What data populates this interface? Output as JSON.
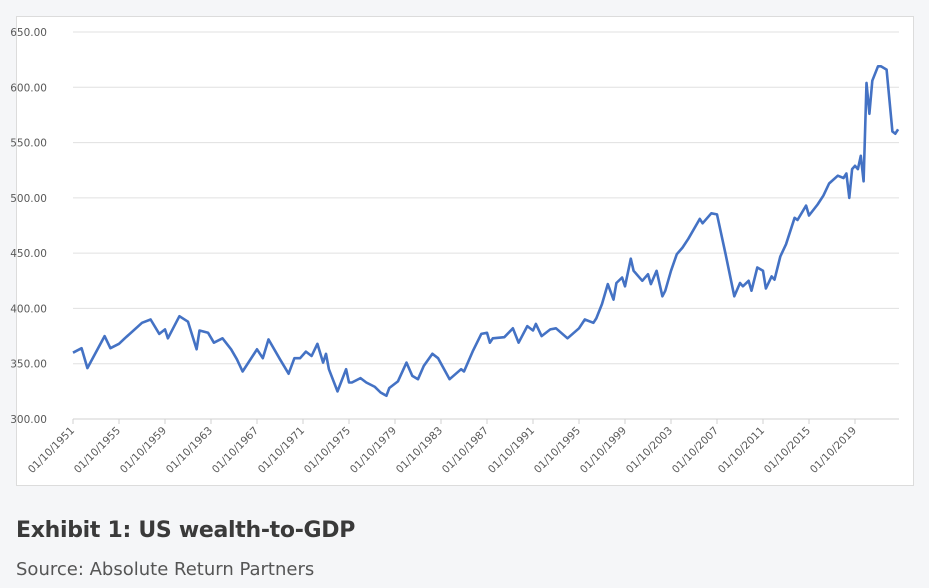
{
  "caption": {
    "title": "Exhibit 1: US wealth-to-GDP",
    "source": "Source: Absolute Return Partners"
  },
  "chart_data": {
    "type": "line",
    "title": "",
    "xlabel": "",
    "ylabel": "",
    "ylim": [
      300,
      650
    ],
    "yticks": [
      "300.00",
      "350.00",
      "400.00",
      "450.00",
      "500.00",
      "550.00",
      "600.00",
      "650.00"
    ],
    "xticks": [
      "01/10/1951",
      "01/10/1955",
      "01/10/1959",
      "01/10/1963",
      "01/10/1967",
      "01/10/1971",
      "01/10/1975",
      "01/10/1979",
      "01/10/1983",
      "01/10/1987",
      "01/10/1991",
      "01/10/1995",
      "01/10/1999",
      "01/10/2003",
      "01/10/2007",
      "01/10/2011",
      "01/10/2015",
      "01/10/2019"
    ],
    "grid": true,
    "legend": "none",
    "line_color": "#4472c4",
    "series": [
      {
        "x": [
          "01/10/1951",
          "01/07/1952",
          "01/01/1953",
          "01/07/1954",
          "01/01/1955",
          "01/10/1955",
          "01/04/1956",
          "01/10/1957",
          "01/07/1958",
          "01/04/1959",
          "01/10/1959",
          "01/01/1960",
          "01/01/1961",
          "01/10/1961",
          "01/07/1962",
          "01/10/1962",
          "01/07/1963",
          "01/01/1964",
          "01/10/1964",
          "01/07/1965",
          "01/01/1966",
          "01/07/1966",
          "01/10/1967",
          "01/04/1968",
          "01/10/1968",
          "01/10/1969",
          "01/07/1970",
          "01/01/1971",
          "01/07/1971",
          "01/01/1972",
          "01/07/1972",
          "01/01/1973",
          "01/07/1973",
          "01/10/1973",
          "01/01/1974",
          "01/10/1974",
          "01/07/1975",
          "01/10/1975",
          "01/01/1976",
          "01/10/1976",
          "01/04/1977",
          "01/01/1978",
          "01/07/1978",
          "01/01/1979",
          "01/04/1979",
          "01/01/1980",
          "01/10/1980",
          "01/04/1981",
          "01/10/1981",
          "01/04/1982",
          "01/01/1983",
          "01/07/1983",
          "01/07/1984",
          "01/07/1985",
          "01/10/1985",
          "01/07/1986",
          "01/04/1987",
          "01/10/1987",
          "01/01/1988",
          "01/04/1988",
          "01/04/1989",
          "01/01/1990",
          "01/07/1990",
          "01/04/1991",
          "01/10/1991",
          "01/01/1992",
          "01/07/1992",
          "01/04/1993",
          "01/10/1993",
          "01/10/1994",
          "01/10/1995",
          "01/04/1996",
          "01/01/1997",
          "01/04/1997",
          "01/10/1997",
          "01/04/1998",
          "01/10/1998",
          "01/01/1999",
          "01/07/1999",
          "01/10/1999",
          "01/04/2000",
          "01/07/2000",
          "01/04/2001",
          "01/10/2001",
          "01/01/2002",
          "01/07/2002",
          "01/01/2003",
          "01/04/2003",
          "01/10/2003",
          "01/04/2004",
          "01/10/2004",
          "01/04/2005",
          "01/04/2006",
          "01/07/2006",
          "01/04/2007",
          "01/10/2007",
          "01/07/2008",
          "01/04/2009",
          "01/10/2009",
          "01/01/2010",
          "01/07/2010",
          "01/10/2010",
          "01/04/2011",
          "01/10/2011",
          "01/01/2012",
          "01/07/2012",
          "01/10/2012",
          "01/04/2013",
          "01/10/2013",
          "01/07/2014",
          "01/10/2014",
          "01/07/2015",
          "01/10/2015",
          "01/07/2016",
          "01/01/2017",
          "01/07/2017",
          "01/04/2018",
          "01/10/2018",
          "01/01/2019",
          "01/04/2019",
          "01/07/2019",
          "01/10/2019",
          "01/01/2020",
          "01/04/2020",
          "01/07/2020",
          "01/10/2020",
          "01/01/2021",
          "01/04/2021",
          "01/10/2021",
          "01/01/2022",
          "01/07/2022",
          "01/01/2023",
          "01/04/2023",
          "01/07/2023"
        ],
        "y": [
          360,
          364,
          346,
          375,
          364,
          368,
          373,
          387,
          390,
          377,
          381,
          373,
          393,
          388,
          363,
          380,
          378,
          369,
          373,
          363,
          354,
          343,
          363,
          355,
          372,
          354,
          341,
          355,
          355,
          361,
          357,
          368,
          351,
          359,
          345,
          325,
          345,
          333,
          333,
          337,
          333,
          329,
          324,
          321,
          328,
          334,
          351,
          339,
          336,
          348,
          359,
          355,
          336,
          345,
          343,
          361,
          377,
          378,
          369,
          373,
          374,
          382,
          369,
          384,
          380,
          386,
          375,
          381,
          382,
          373,
          382,
          390,
          387,
          391,
          404,
          422,
          408,
          423,
          428,
          420,
          445,
          434,
          425,
          431,
          422,
          434,
          411,
          416,
          434,
          449,
          455,
          463,
          481,
          477,
          486,
          485,
          449,
          411,
          423,
          420,
          425,
          416,
          437,
          434,
          418,
          429,
          426,
          447,
          458,
          482,
          480,
          493,
          484,
          494,
          502,
          513,
          520,
          518,
          522,
          500,
          526,
          529,
          526,
          538,
          515,
          604,
          576,
          606,
          619,
          619,
          616,
          560,
          558,
          562
        ]
      }
    ]
  }
}
